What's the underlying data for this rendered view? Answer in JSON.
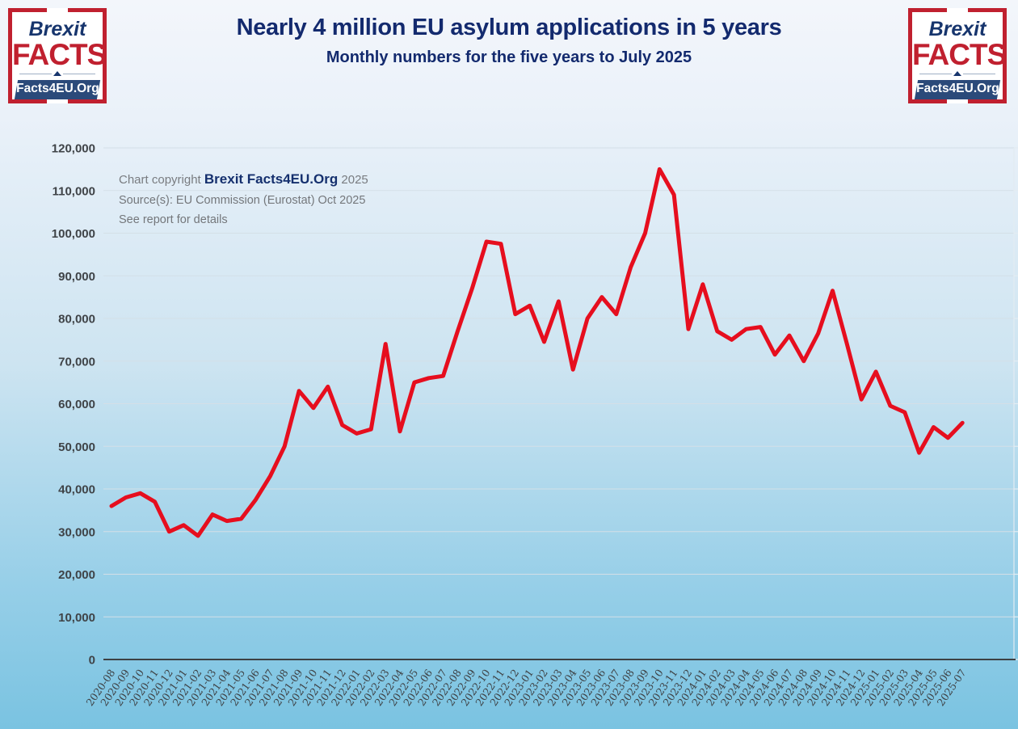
{
  "header": {
    "title": "Nearly 4 million EU asylum applications in 5 years",
    "subtitle": "Monthly numbers for the five years to July 2025",
    "logo": {
      "line1": "Brexit",
      "line2": "FACTS",
      "banner": "Facts4EU.Org"
    }
  },
  "annotation": {
    "copyright_prefix": "Chart copyright",
    "copyright_brand": "Brexit Facts4EU.Org",
    "copyright_year": "2025",
    "source": "Source(s): EU Commission (Eurostat) Oct 2025",
    "note": "See report for details"
  },
  "colors": {
    "line_red": "#e60e1e",
    "title_navy": "#132a6e",
    "logo_red": "#c0202f",
    "logo_navy": "#17356d",
    "banner_navy": "#2b4a7a",
    "gridline": "#d4dfe7",
    "axis": "#3d4043",
    "background_top": "#f3f6fb",
    "background_bottom": "#7ac3e1"
  },
  "chart_data": {
    "type": "line",
    "title": "Nearly 4 million EU asylum applications in 5 years",
    "subtitle": "Monthly numbers for the five years to July 2025",
    "xlabel": "",
    "ylabel": "",
    "grid": true,
    "legend": "none",
    "ylim": [
      0,
      120000
    ],
    "ytick_step": 10000,
    "yticks": [
      "0",
      "10,000",
      "20,000",
      "30,000",
      "40,000",
      "50,000",
      "60,000",
      "70,000",
      "80,000",
      "90,000",
      "100,000",
      "110,000",
      "120,000"
    ],
    "x": [
      "2020-08",
      "2020-09",
      "2020-10",
      "2020-11",
      "2020-12",
      "2021-01",
      "2021-02",
      "2021-03",
      "2021-04",
      "2021-05",
      "2021-06",
      "2021-07",
      "2021-08",
      "2021-09",
      "2021-10",
      "2021-11",
      "2021-12",
      "2022-01",
      "2022-02",
      "2022-03",
      "2022-04",
      "2022-05",
      "2022-06",
      "2022-07",
      "2022-08",
      "2022-09",
      "2022-10",
      "2022-11",
      "2022-12",
      "2023-01",
      "2023-02",
      "2023-03",
      "2023-04",
      "2023-05",
      "2023-06",
      "2023-07",
      "2023-08",
      "2023-09",
      "2023-10",
      "2023-11",
      "2023-12",
      "2024-01",
      "2024-02",
      "2024-03",
      "2024-04",
      "2024-05",
      "2024-06",
      "2024-07",
      "2024-08",
      "2024-09",
      "2024-10",
      "2024-11",
      "2024-12",
      "2025-01",
      "2025-02",
      "2025-03",
      "2025-04",
      "2025-05",
      "2025-06",
      "2025-07"
    ],
    "series": [
      {
        "name": "EU asylum applications (monthly)",
        "color": "#e60e1e",
        "values": [
          36000,
          38000,
          39000,
          37000,
          30000,
          31500,
          29000,
          34000,
          32500,
          33000,
          37500,
          43000,
          50000,
          63000,
          59000,
          64000,
          55000,
          53000,
          54000,
          74000,
          53500,
          65000,
          66000,
          66500,
          77000,
          87000,
          98000,
          97500,
          81000,
          83000,
          74500,
          84000,
          68000,
          80000,
          85000,
          81000,
          92000,
          100000,
          115000,
          109000,
          77500,
          88000,
          77000,
          75000,
          77500,
          78000,
          71500,
          76000,
          70000,
          76500,
          86500,
          74000,
          61000,
          67500,
          59500,
          58000,
          48500,
          54500,
          52000,
          55500
        ]
      }
    ],
    "annotations": [
      "Chart copyright Brexit Facts4EU.Org 2025",
      "Source(s): EU Commission (Eurostat) Oct 2025",
      "See report for details"
    ]
  }
}
